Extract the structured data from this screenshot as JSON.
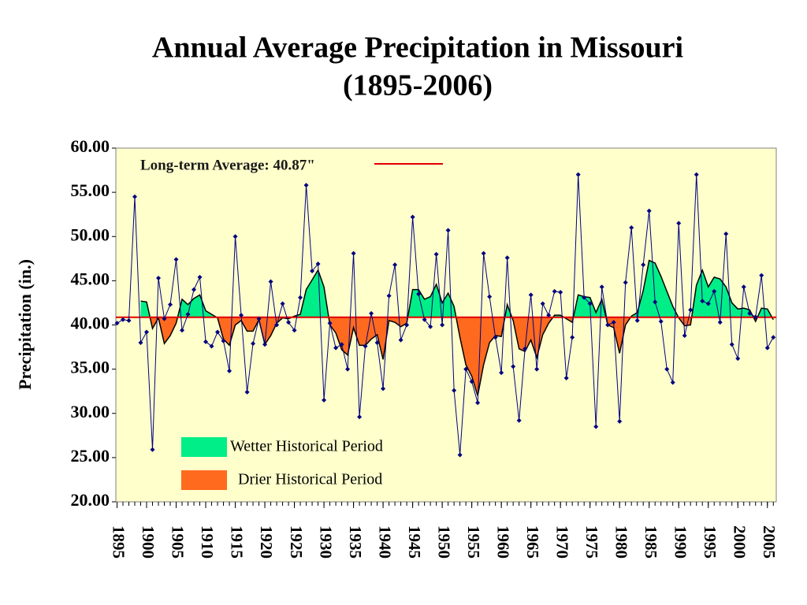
{
  "chart_data": {
    "type": "line",
    "title": "Annual Average Precipitation in Missouri",
    "subtitle": "(1895-2006)",
    "y_label": "Precipitation (in.)",
    "x": [
      1895,
      1896,
      1897,
      1898,
      1899,
      1900,
      1901,
      1902,
      1903,
      1904,
      1905,
      1906,
      1907,
      1908,
      1909,
      1910,
      1911,
      1912,
      1913,
      1914,
      1915,
      1916,
      1917,
      1918,
      1919,
      1920,
      1921,
      1922,
      1923,
      1924,
      1925,
      1926,
      1927,
      1928,
      1929,
      1930,
      1931,
      1932,
      1933,
      1934,
      1935,
      1936,
      1937,
      1938,
      1939,
      1940,
      1941,
      1942,
      1943,
      1944,
      1945,
      1946,
      1947,
      1948,
      1949,
      1950,
      1951,
      1952,
      1953,
      1954,
      1955,
      1956,
      1957,
      1958,
      1959,
      1960,
      1961,
      1962,
      1963,
      1964,
      1965,
      1966,
      1967,
      1968,
      1969,
      1970,
      1971,
      1972,
      1973,
      1974,
      1975,
      1976,
      1977,
      1978,
      1979,
      1980,
      1981,
      1982,
      1983,
      1984,
      1985,
      1986,
      1987,
      1988,
      1989,
      1990,
      1991,
      1992,
      1993,
      1994,
      1995,
      1996,
      1997,
      1998,
      1999,
      2000,
      2001,
      2002,
      2003,
      2004,
      2005,
      2006
    ],
    "values": [
      40.2,
      40.6,
      40.5,
      54.5,
      38.0,
      39.2,
      25.9,
      45.3,
      40.7,
      42.3,
      47.4,
      39.4,
      41.2,
      44.0,
      45.4,
      38.1,
      37.6,
      39.2,
      38.2,
      34.8,
      50.0,
      41.1,
      32.4,
      37.9,
      40.7,
      37.8,
      44.9,
      40.0,
      42.4,
      40.3,
      39.4,
      43.1,
      55.8,
      46.1,
      46.9,
      31.5,
      40.2,
      37.4,
      37.8,
      35.0,
      48.1,
      29.6,
      37.6,
      41.3,
      38.0,
      32.8,
      43.3,
      46.8,
      38.3,
      40.0,
      52.2,
      43.5,
      40.6,
      39.8,
      48.0,
      40.0,
      50.7,
      32.6,
      25.3,
      35.0,
      33.6,
      31.2,
      48.1,
      43.2,
      38.6,
      34.6,
      47.6,
      35.3,
      29.2,
      37.3,
      43.4,
      35.0,
      42.4,
      41.1,
      43.8,
      43.7,
      34.0,
      38.6,
      57.0,
      43.1,
      42.4,
      28.5,
      44.3,
      40.0,
      40.3,
      29.1,
      44.8,
      51.0,
      40.5,
      46.8,
      52.9,
      42.6,
      40.4,
      35.0,
      33.5,
      51.5,
      38.8,
      41.7,
      57.0,
      42.7,
      42.4,
      43.8,
      40.3,
      50.3,
      37.8,
      36.2,
      44.3,
      41.3,
      40.9,
      45.6,
      37.4,
      38.6
    ],
    "trend_values": [
      null,
      null,
      null,
      null,
      42.7,
      42.6,
      39.6,
      40.8,
      37.9,
      38.8,
      40.2,
      42.9,
      42.3,
      43.0,
      43.4,
      41.6,
      41.2,
      40.8,
      38.4,
      37.7,
      40.0,
      40.5,
      39.3,
      39.3,
      40.6,
      37.8,
      38.8,
      40.2,
      40.8,
      40.7,
      41.0,
      41.2,
      44.0,
      45.1,
      46.2,
      44.3,
      40.0,
      39.1,
      37.2,
      36.6,
      39.7,
      37.7,
      37.7,
      38.4,
      38.9,
      36.1,
      40.5,
      40.3,
      39.8,
      40.2,
      44.0,
      44.0,
      42.9,
      43.2,
      44.6,
      42.5,
      43.6,
      42.1,
      38.6,
      35.5,
      34.2,
      32.0,
      35.5,
      38.0,
      38.8,
      38.7,
      42.3,
      40.5,
      37.3,
      37.0,
      38.3,
      36.3,
      38.9,
      40.2,
      41.1,
      41.1,
      40.7,
      40.3,
      43.4,
      43.2,
      43.1,
      41.4,
      42.9,
      40.0,
      39.7,
      36.8,
      40.0,
      41.0,
      41.4,
      43.9,
      47.3,
      47.0,
      45.5,
      43.8,
      42.1,
      40.8,
      39.9,
      40.0,
      44.5,
      46.2,
      44.3,
      45.4,
      45.2,
      44.3,
      42.5,
      41.8,
      41.9,
      41.7,
      40.4,
      41.9,
      41.8,
      40.6
    ],
    "average": 40.87,
    "average_label": "Long-term Average: 40.87\"",
    "line_color": "#000080",
    "trend_color": "#000000",
    "average_color": "#e00000",
    "plot_background": "#ffffcc",
    "legend": [
      {
        "label": "Wetter Historical Period",
        "color": "#00ee88"
      },
      {
        "label": "Drier Historical Period",
        "color": "#ff6a1f"
      }
    ],
    "xlim": [
      1894.8,
      2006.5
    ],
    "xticks": [
      1895,
      1900,
      1905,
      1910,
      1915,
      1920,
      1925,
      1930,
      1935,
      1940,
      1945,
      1950,
      1955,
      1960,
      1965,
      1970,
      1975,
      1980,
      1985,
      1990,
      1995,
      2000,
      2005
    ],
    "ylim": [
      20,
      60
    ],
    "yticks": [
      {
        "value": 20,
        "label": "20.00"
      },
      {
        "value": 25,
        "label": "25.00"
      },
      {
        "value": 30,
        "label": "30.00"
      },
      {
        "value": 35,
        "label": "35.00"
      },
      {
        "value": 40,
        "label": "40.00"
      },
      {
        "value": 45,
        "label": "45.00"
      },
      {
        "value": 50,
        "label": "50.00"
      },
      {
        "value": 55,
        "label": "55.00"
      },
      {
        "value": 60,
        "label": "60.00"
      }
    ]
  }
}
